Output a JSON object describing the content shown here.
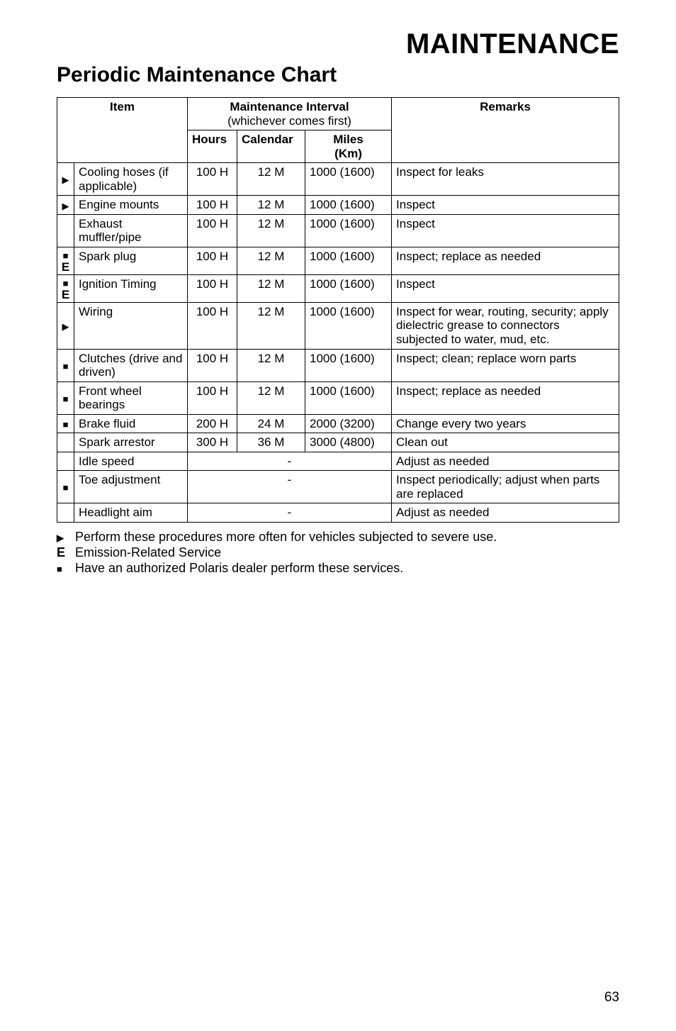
{
  "titles": {
    "main": "MAINTENANCE",
    "sub": "Periodic Maintenance Chart"
  },
  "headers": {
    "item": "Item",
    "interval": "Maintenance Interval",
    "intervalSub": "(whichever comes first)",
    "remarks": "Remarks",
    "hours": "Hours",
    "calendar": "Calendar",
    "miles": "Miles",
    "km": "(Km)"
  },
  "rows": [
    {
      "sym": "▶",
      "item": "Cooling hoses (if applicable)",
      "hours": "100 H",
      "cal": "12 M",
      "miles": "1000 (1600)",
      "remarks": "Inspect for leaks"
    },
    {
      "sym": "▶",
      "item": "Engine mounts",
      "hours": "100 H",
      "cal": "12 M",
      "miles": "1000 (1600)",
      "remarks": "Inspect"
    },
    {
      "sym": "",
      "item": "Exhaust muffler/pipe",
      "hours": "100 H",
      "cal": "12 M",
      "miles": "1000 (1600)",
      "remarks": "Inspect"
    },
    {
      "sym": "■\nE",
      "item": "Spark plug",
      "hours": "100 H",
      "cal": "12 M",
      "miles": "1000 (1600)",
      "remarks": "Inspect; replace as needed"
    },
    {
      "sym": "■\nE",
      "item": "Ignition Timing",
      "hours": "100 H",
      "cal": "12 M",
      "miles": "1000 (1600)",
      "remarks": "Inspect"
    },
    {
      "sym": "▶",
      "item": "Wiring",
      "hours": "100 H",
      "cal": "12 M",
      "miles": "1000 (1600)",
      "remarks": "Inspect for wear, routing, security; apply dielectric grease to connectors subjected to water, mud, etc."
    },
    {
      "sym": "■",
      "item": "Clutches (drive and driven)",
      "hours": "100 H",
      "cal": "12 M",
      "miles": "1000 (1600)",
      "remarks": "Inspect; clean; replace worn parts"
    },
    {
      "sym": "■",
      "item": "Front wheel bearings",
      "hours": "100 H",
      "cal": "12 M",
      "miles": "1000 (1600)",
      "remarks": "Inspect; replace as needed"
    },
    {
      "sym": "■",
      "item": "Brake fluid",
      "hours": "200 H",
      "cal": "24 M",
      "miles": "2000 (3200)",
      "remarks": "Change every two years"
    },
    {
      "sym": "",
      "item": "Spark arrestor",
      "hours": "300 H",
      "cal": "36 M",
      "miles": "3000 (4800)",
      "remarks": "Clean out"
    },
    {
      "sym": "",
      "item": "Idle speed",
      "merged": "-",
      "remarks": "Adjust as needed"
    },
    {
      "sym": "■",
      "item": "Toe adjustment",
      "merged": "-",
      "remarks": "Inspect periodically; adjust when parts are replaced"
    },
    {
      "sym": "",
      "item": "Headlight aim",
      "merged": "-",
      "remarks": "Adjust as needed"
    }
  ],
  "legend": {
    "l1": "Perform these procedures more often for vehicles subjected to severe use.",
    "l2": "Emission-Related Service",
    "l3": "Have an authorized Polaris dealer perform these services.",
    "s2": "E"
  },
  "pageNumber": "63"
}
